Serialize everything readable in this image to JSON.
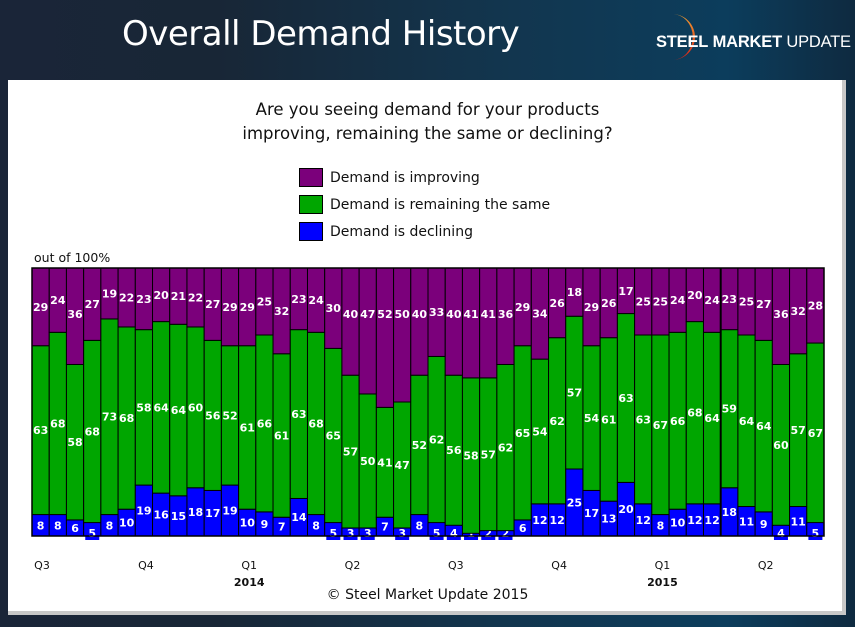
{
  "slide": {
    "title": "Overall Demand History",
    "logo": {
      "word1": "STEEL",
      "word2": "MARKET",
      "word3": "UPDATE"
    },
    "footer": "© Steel Market Update 2015"
  },
  "colors": {
    "improving": "#7b007b",
    "same": "#00a600",
    "declining": "#0000ff"
  },
  "chart_data": {
    "type": "bar",
    "stacked": true,
    "title": "Are you seeing demand for your products improving, remaining the same or declining?",
    "title_lines": [
      "Are you seeing demand for your products",
      "improving, remaining the same or declining?"
    ],
    "ylabel": "out of 100%",
    "ylim": [
      0,
      100
    ],
    "grid": false,
    "legend_position": "top-center",
    "x_ticks": [
      {
        "label": "Q3",
        "bar_index": 0,
        "year": ""
      },
      {
        "label": "Q4",
        "bar_index": 6,
        "year": ""
      },
      {
        "label": "Q1",
        "bar_index": 12,
        "year": "2014"
      },
      {
        "label": "Q2",
        "bar_index": 18,
        "year": ""
      },
      {
        "label": "Q3",
        "bar_index": 24,
        "year": ""
      },
      {
        "label": "Q4",
        "bar_index": 30,
        "year": ""
      },
      {
        "label": "Q1",
        "bar_index": 36,
        "year": "2015"
      },
      {
        "label": "Q2",
        "bar_index": 42,
        "year": ""
      }
    ],
    "series": [
      {
        "name": "Demand is improving",
        "key": "improving",
        "values": [
          29,
          24,
          36,
          27,
          19,
          22,
          23,
          20,
          21,
          22,
          27,
          29,
          29,
          25,
          32,
          23,
          24,
          30,
          40,
          47,
          52,
          50,
          40,
          33,
          40,
          41,
          41,
          36,
          29,
          34,
          26,
          18,
          29,
          26,
          17,
          25,
          25,
          24,
          20,
          24,
          23,
          25,
          27,
          36,
          32,
          28
        ]
      },
      {
        "name": "Demand is remaining the same",
        "key": "same",
        "values": [
          63,
          68,
          58,
          68,
          73,
          68,
          58,
          64,
          64,
          60,
          56,
          52,
          61,
          66,
          61,
          63,
          68,
          65,
          57,
          50,
          41,
          47,
          52,
          62,
          56,
          58,
          57,
          62,
          65,
          54,
          62,
          57,
          54,
          61,
          63,
          63,
          67,
          66,
          68,
          64,
          59,
          64,
          64,
          60,
          57,
          67
        ]
      },
      {
        "name": "Demand is declining",
        "key": "declining",
        "values": [
          8,
          8,
          6,
          5,
          8,
          10,
          19,
          16,
          15,
          18,
          17,
          19,
          10,
          9,
          7,
          14,
          8,
          5,
          3,
          3,
          7,
          3,
          8,
          5,
          4,
          1,
          2,
          2,
          6,
          12,
          12,
          25,
          17,
          13,
          20,
          12,
          8,
          10,
          12,
          12,
          18,
          11,
          9,
          4,
          11,
          5
        ]
      }
    ]
  }
}
